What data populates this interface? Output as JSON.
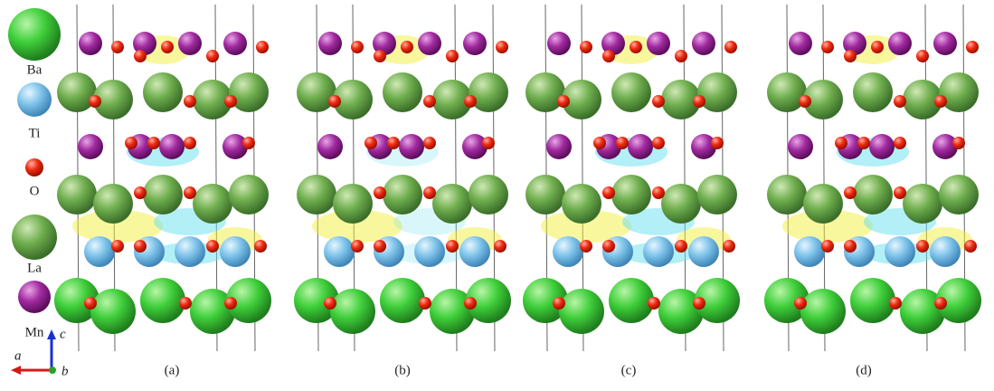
{
  "legend": [
    {
      "label": "Ba"
    },
    {
      "label": "Ti"
    },
    {
      "label": "O"
    },
    {
      "label": "La"
    },
    {
      "label": "Mn"
    }
  ],
  "axes": {
    "a": "a",
    "b": "b",
    "c": "c"
  },
  "panels": [
    {
      "label": "(a)"
    },
    {
      "label": "(b)"
    },
    {
      "label": "(c)"
    },
    {
      "label": "(d)"
    }
  ]
}
